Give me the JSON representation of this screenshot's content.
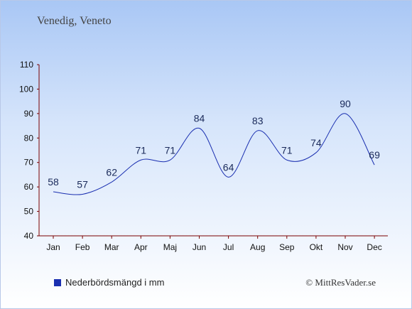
{
  "location": "Venedig, Veneto",
  "legend_label": "Nederbördsmängd i mm",
  "source": "© MittResVader.se",
  "colors": {
    "line": "#1a2fb0",
    "axis": "#7a0000",
    "label": "#1a2a5a"
  },
  "chart_data": {
    "type": "line",
    "title": "",
    "xlabel": "",
    "ylabel": "",
    "ylim": [
      40,
      110
    ],
    "yticks": [
      40,
      50,
      60,
      70,
      80,
      90,
      100,
      110
    ],
    "grid": false,
    "categories": [
      "Jan",
      "Feb",
      "Mar",
      "Apr",
      "Maj",
      "Jun",
      "Jul",
      "Aug",
      "Sep",
      "Okt",
      "Nov",
      "Dec"
    ],
    "series": [
      {
        "name": "Nederbördsmängd i mm",
        "values": [
          58,
          57,
          62,
          71,
          71,
          84,
          64,
          83,
          71,
          74,
          90,
          69
        ]
      }
    ]
  }
}
